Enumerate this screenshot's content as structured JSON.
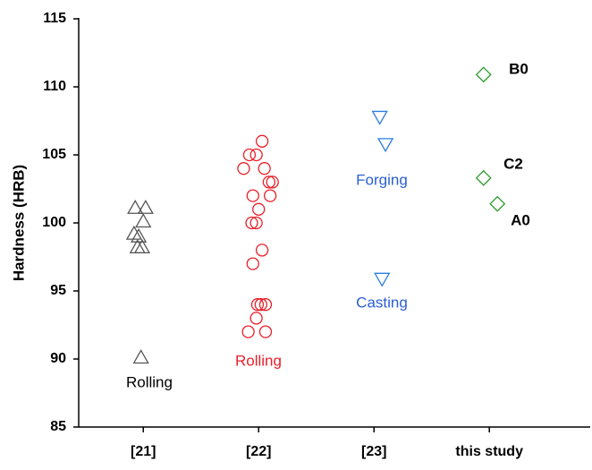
{
  "chart_data": {
    "type": "scatter",
    "y_label": "Hardness (HRB)",
    "xlim": [
      0.44,
      4.89
    ],
    "ylim": [
      85,
      115
    ],
    "xticks": [
      {
        "value": 1,
        "label": "[21]"
      },
      {
        "value": 2,
        "label": "[22]"
      },
      {
        "value": 3,
        "label": "[23]"
      },
      {
        "value": 4,
        "label": "this study"
      }
    ],
    "yticks": [
      85,
      90,
      95,
      100,
      105,
      110,
      115
    ],
    "grid": false,
    "series": [
      {
        "color": "#555555",
        "marker": "triangle-up",
        "x": [
          0.93,
          1.02,
          1.0,
          0.92,
          0.96,
          0.95,
          0.99,
          0.98
        ],
        "values": [
          101.1,
          101.1,
          100.1,
          99.2,
          99.0,
          98.2,
          98.2,
          90.1
        ]
      },
      {
        "color": "#e8202a",
        "marker": "circle",
        "x": [
          2.03,
          1.92,
          1.98,
          1.87,
          2.05,
          2.09,
          2.12,
          1.95,
          2.1,
          2.0,
          1.98,
          1.94,
          2.03,
          1.95,
          2.02,
          1.99,
          2.06,
          1.98,
          1.91,
          2.06
        ],
        "values": [
          106.0,
          105.0,
          105.0,
          104.0,
          104.0,
          103.0,
          103.0,
          102.0,
          102.0,
          101.0,
          100.0,
          100.0,
          98.0,
          97.0,
          94.0,
          94.0,
          94.0,
          93.0,
          92.0,
          92.0
        ]
      },
      {
        "color": "#2a7de1",
        "marker": "triangle-down",
        "x": [
          3.05,
          3.1,
          3.07
        ],
        "values": [
          107.8,
          105.8,
          95.9
        ]
      },
      {
        "color": "#2a9a2a",
        "marker": "diamond",
        "x": [
          3.95,
          3.95,
          4.07
        ],
        "values": [
          110.9,
          103.3,
          101.4
        ]
      }
    ],
    "annotations": [
      "Rolling",
      "Rolling",
      "Forging",
      "Casting",
      "B0",
      "C2",
      "A0"
    ]
  }
}
